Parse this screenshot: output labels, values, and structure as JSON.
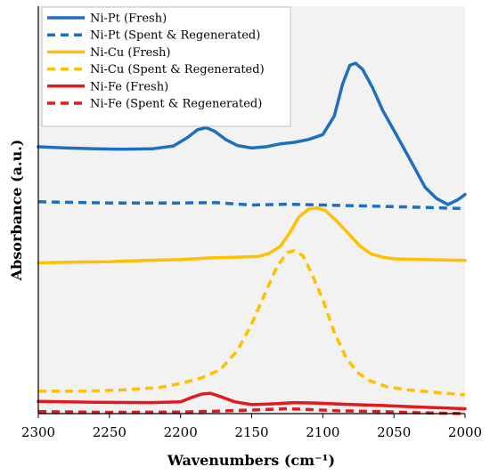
{
  "chart_data": {
    "type": "line",
    "title": "",
    "xlabel": "Wavenumbers (cm⁻¹)",
    "ylabel": "Absorbance (a.u.)",
    "xlim": [
      2300,
      2000
    ],
    "x_reversed": true,
    "ylim": [
      0,
      10
    ],
    "x_ticks": [
      2300,
      2250,
      2200,
      2150,
      2100,
      2050,
      2000
    ],
    "y_ticks_shown": false,
    "grid": false,
    "legend_position": "top-left",
    "plot_background": "#f2f2f2",
    "series": [
      {
        "name": "Ni-Pt (Fresh)",
        "color": "#1f6fbf",
        "style": "solid",
        "points": [
          [
            2300,
            6.55
          ],
          [
            2280,
            6.52
          ],
          [
            2260,
            6.5
          ],
          [
            2240,
            6.49
          ],
          [
            2220,
            6.5
          ],
          [
            2205,
            6.57
          ],
          [
            2195,
            6.78
          ],
          [
            2188,
            6.97
          ],
          [
            2182,
            7.02
          ],
          [
            2176,
            6.93
          ],
          [
            2168,
            6.72
          ],
          [
            2160,
            6.58
          ],
          [
            2150,
            6.52
          ],
          [
            2140,
            6.55
          ],
          [
            2130,
            6.62
          ],
          [
            2120,
            6.66
          ],
          [
            2110,
            6.73
          ],
          [
            2100,
            6.85
          ],
          [
            2092,
            7.3
          ],
          [
            2086,
            8.1
          ],
          [
            2081,
            8.55
          ],
          [
            2077,
            8.6
          ],
          [
            2072,
            8.45
          ],
          [
            2065,
            8.0
          ],
          [
            2058,
            7.45
          ],
          [
            2050,
            6.95
          ],
          [
            2042,
            6.45
          ],
          [
            2035,
            6.0
          ],
          [
            2028,
            5.55
          ],
          [
            2020,
            5.28
          ],
          [
            2012,
            5.13
          ],
          [
            2005,
            5.25
          ],
          [
            2000,
            5.38
          ]
        ]
      },
      {
        "name": "Ni-Pt (Spent & Regenerated)",
        "color": "#1f6fbf",
        "style": "dashed",
        "points": [
          [
            2300,
            5.2
          ],
          [
            2250,
            5.17
          ],
          [
            2200,
            5.17
          ],
          [
            2175,
            5.18
          ],
          [
            2150,
            5.12
          ],
          [
            2125,
            5.14
          ],
          [
            2100,
            5.12
          ],
          [
            2075,
            5.1
          ],
          [
            2050,
            5.08
          ],
          [
            2025,
            5.06
          ],
          [
            2000,
            5.03
          ]
        ]
      },
      {
        "name": "Ni-Cu (Fresh)",
        "color": "#ffc000",
        "style": "solid",
        "points": [
          [
            2300,
            3.7
          ],
          [
            2275,
            3.72
          ],
          [
            2250,
            3.73
          ],
          [
            2225,
            3.76
          ],
          [
            2200,
            3.78
          ],
          [
            2180,
            3.82
          ],
          [
            2160,
            3.84
          ],
          [
            2145,
            3.86
          ],
          [
            2138,
            3.93
          ],
          [
            2130,
            4.1
          ],
          [
            2123,
            4.45
          ],
          [
            2117,
            4.82
          ],
          [
            2110,
            5.02
          ],
          [
            2104,
            5.05
          ],
          [
            2098,
            4.98
          ],
          [
            2090,
            4.72
          ],
          [
            2082,
            4.42
          ],
          [
            2074,
            4.12
          ],
          [
            2066,
            3.92
          ],
          [
            2058,
            3.84
          ],
          [
            2050,
            3.8
          ],
          [
            2030,
            3.78
          ],
          [
            2000,
            3.76
          ]
        ]
      },
      {
        "name": "Ni-Cu (Spent & Regenerated)",
        "color": "#ffc000",
        "style": "dashed",
        "points": [
          [
            2300,
            0.55
          ],
          [
            2270,
            0.55
          ],
          [
            2240,
            0.58
          ],
          [
            2215,
            0.64
          ],
          [
            2200,
            0.74
          ],
          [
            2185,
            0.88
          ],
          [
            2172,
            1.08
          ],
          [
            2160,
            1.55
          ],
          [
            2150,
            2.2
          ],
          [
            2140,
            3.0
          ],
          [
            2132,
            3.62
          ],
          [
            2125,
            3.95
          ],
          [
            2120,
            4.0
          ],
          [
            2114,
            3.88
          ],
          [
            2108,
            3.45
          ],
          [
            2100,
            2.8
          ],
          [
            2092,
            2.0
          ],
          [
            2084,
            1.4
          ],
          [
            2076,
            1.02
          ],
          [
            2068,
            0.82
          ],
          [
            2055,
            0.66
          ],
          [
            2040,
            0.58
          ],
          [
            2020,
            0.52
          ],
          [
            2000,
            0.46
          ]
        ]
      },
      {
        "name": "Ni-Fe (Fresh)",
        "color": "#e31a1c",
        "style": "solid",
        "points": [
          [
            2300,
            0.3
          ],
          [
            2260,
            0.28
          ],
          [
            2220,
            0.27
          ],
          [
            2200,
            0.29
          ],
          [
            2192,
            0.4
          ],
          [
            2185,
            0.48
          ],
          [
            2179,
            0.5
          ],
          [
            2172,
            0.42
          ],
          [
            2162,
            0.29
          ],
          [
            2150,
            0.22
          ],
          [
            2135,
            0.24
          ],
          [
            2120,
            0.27
          ],
          [
            2105,
            0.26
          ],
          [
            2085,
            0.23
          ],
          [
            2060,
            0.2
          ],
          [
            2030,
            0.16
          ],
          [
            2000,
            0.12
          ]
        ]
      },
      {
        "name": "Ni-Fe (Spent & Regenerated)",
        "color": "#e31a1c",
        "style": "dashed",
        "points": [
          [
            2300,
            0.05
          ],
          [
            2250,
            0.03
          ],
          [
            2200,
            0.04
          ],
          [
            2165,
            0.07
          ],
          [
            2140,
            0.1
          ],
          [
            2125,
            0.12
          ],
          [
            2110,
            0.1
          ],
          [
            2090,
            0.07
          ],
          [
            2060,
            0.05
          ],
          [
            2030,
            0.02
          ],
          [
            2000,
            0.0
          ]
        ]
      }
    ]
  }
}
